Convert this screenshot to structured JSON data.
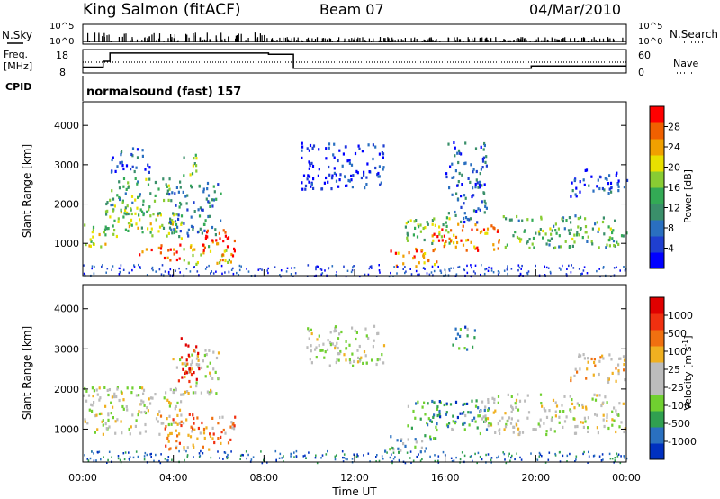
{
  "header": {
    "station": "King Salmon (fitACF)",
    "beam": "Beam 07",
    "date": "04/Mar/2010"
  },
  "summary_panels": {
    "nsky_label": "N.Sky",
    "nsearch_label": "N.Search",
    "count_ticks": [
      "10^5",
      "10^0"
    ],
    "freq_label_line1": "Freq.",
    "freq_label_line2": "[MHz]",
    "freq_ticks": [
      "18",
      "8"
    ],
    "nave_label": "Nave",
    "nave_ticks": [
      "60",
      "0"
    ],
    "cpid_label": "CPID",
    "cpid_value": "normalsound (fast) 157"
  },
  "chart_data": [
    {
      "type": "heatmap",
      "name": "power",
      "xlabel": "",
      "ylabel": "Slant Range [km]",
      "xlim": [
        0,
        24
      ],
      "ylim": [
        180,
        4600
      ],
      "yticks": [
        "1000",
        "2000",
        "3000",
        "4000"
      ],
      "colorbar": {
        "label": "Power [dB]",
        "ticks": [
          "4",
          "8",
          "12",
          "16",
          "20",
          "24",
          "28"
        ],
        "colors": [
          "#0000ff",
          "#1f3fd0",
          "#2a6fc0",
          "#3a8f6a",
          "#33aa55",
          "#88cc33",
          "#e8e000",
          "#f0a000",
          "#f06000",
          "#ff0000"
        ]
      },
      "regions": [
        {
          "t": [
            0.0,
            1.1
          ],
          "r": [
            900,
            1500
          ],
          "level": 0.62
        },
        {
          "t": [
            0.9,
            4.4
          ],
          "r": [
            1150,
            1900
          ],
          "level": 0.55
        },
        {
          "t": [
            1.0,
            3.9
          ],
          "r": [
            1750,
            2700
          ],
          "level": 0.45
        },
        {
          "t": [
            1.2,
            3.0
          ],
          "r": [
            2800,
            3450
          ],
          "level": 0.18
        },
        {
          "t": [
            3.7,
            6.1
          ],
          "r": [
            1200,
            2600
          ],
          "level": 0.28
        },
        {
          "t": [
            4.3,
            5.0
          ],
          "r": [
            2700,
            3300
          ],
          "level": 0.5
        },
        {
          "t": [
            2.4,
            4.3
          ],
          "r": [
            600,
            1000
          ],
          "level": 0.9
        },
        {
          "t": [
            4.4,
            6.6
          ],
          "r": [
            500,
            1000
          ],
          "level": 0.65
        },
        {
          "t": [
            5.2,
            6.8
          ],
          "r": [
            700,
            1400
          ],
          "level": 0.92
        },
        {
          "t": [
            9.6,
            13.3
          ],
          "r": [
            2400,
            3600
          ],
          "level": 0.12
        },
        {
          "t": [
            13.5,
            15.6
          ],
          "r": [
            450,
            900
          ],
          "level": 0.8
        },
        {
          "t": [
            14.2,
            16.4
          ],
          "r": [
            1000,
            1700
          ],
          "level": 0.5
        },
        {
          "t": [
            15.4,
            18.4
          ],
          "r": [
            800,
            1550
          ],
          "level": 0.82
        },
        {
          "t": [
            16.0,
            17.8
          ],
          "r": [
            1550,
            3600
          ],
          "level": 0.22
        },
        {
          "t": [
            18.5,
            24.0
          ],
          "r": [
            900,
            1750
          ],
          "level": 0.45
        },
        {
          "t": [
            21.5,
            24.0
          ],
          "r": [
            2200,
            2900
          ],
          "level": 0.15
        }
      ]
    },
    {
      "type": "heatmap",
      "name": "velocity",
      "xlabel": "Time UT",
      "ylabel": "Slant Range [km]",
      "xlim": [
        0,
        24
      ],
      "ylim": [
        180,
        4600
      ],
      "xticks": [
        "00:00",
        "04:00",
        "08:00",
        "12:00",
        "16:00",
        "20:00",
        "00:00"
      ],
      "yticks": [
        "1000",
        "2000",
        "3000",
        "4000"
      ],
      "colorbar": {
        "label": "Velocity [m s^-1]",
        "ticks": [
          "1000",
          "500",
          "100",
          "25",
          "-25",
          "-100",
          "-500",
          "-1000"
        ],
        "colors": [
          "#0030c0",
          "#2a70c0",
          "#30a050",
          "#70d030",
          "#bcbcbc",
          "#bcbcbc",
          "#f0b020",
          "#f07010",
          "#f03010",
          "#e00000"
        ]
      },
      "regions": [
        {
          "t": [
            0.0,
            4.5
          ],
          "r": [
            900,
            2100
          ],
          "level": 0.5
        },
        {
          "t": [
            3.9,
            6.0
          ],
          "r": [
            1900,
            3000
          ],
          "level": 0.5
        },
        {
          "t": [
            4.2,
            5.1
          ],
          "r": [
            2200,
            3300
          ],
          "level": 0.92
        },
        {
          "t": [
            3.3,
            6.7
          ],
          "r": [
            500,
            1400
          ],
          "level": 0.72
        },
        {
          "t": [
            9.8,
            13.3
          ],
          "r": [
            2600,
            3600
          ],
          "level": 0.48
        },
        {
          "t": [
            13.2,
            15.6
          ],
          "r": [
            450,
            900
          ],
          "level": 0.3
        },
        {
          "t": [
            14.3,
            17.9
          ],
          "r": [
            1000,
            1750
          ],
          "level": 0.28
        },
        {
          "t": [
            15.6,
            17.0
          ],
          "r": [
            1300,
            1750
          ],
          "level": 0.1
        },
        {
          "t": [
            16.3,
            17.3
          ],
          "r": [
            3000,
            3600
          ],
          "level": 0.25
        },
        {
          "t": [
            17.5,
            24.0
          ],
          "r": [
            900,
            1900
          ],
          "level": 0.5
        },
        {
          "t": [
            21.5,
            24.0
          ],
          "r": [
            2200,
            2900
          ],
          "level": 0.62
        }
      ]
    }
  ],
  "cpid_steps": [
    {
      "t0": 0.0,
      "t1": 0.9,
      "freq": 10.5
    },
    {
      "t0": 0.9,
      "t1": 1.2,
      "freq": 13.0
    },
    {
      "t0": 1.2,
      "t1": 8.2,
      "freq": 16.5
    },
    {
      "t0": 8.2,
      "t1": 9.3,
      "freq": 16.0
    },
    {
      "t0": 9.3,
      "t1": 19.8,
      "freq": 10.0
    },
    {
      "t0": 19.8,
      "t1": 24.0,
      "freq": 11.0
    }
  ]
}
